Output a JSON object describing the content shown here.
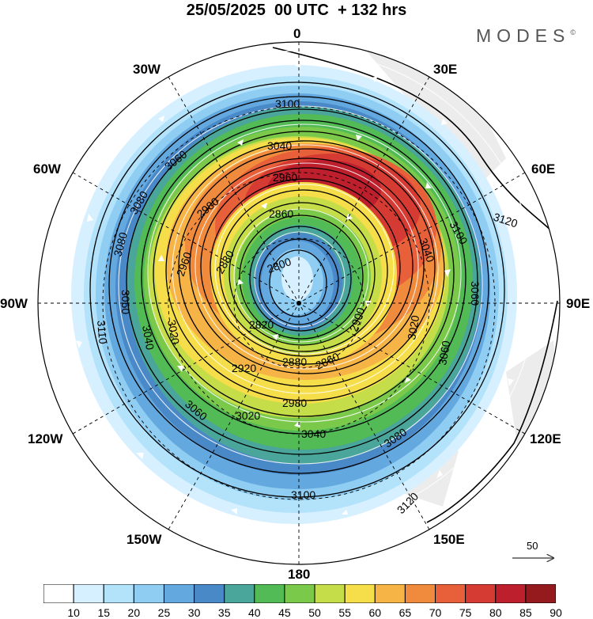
{
  "title": "25/05/2025  00 UTC  + 132 hrs",
  "logo": "MODES",
  "logo_mark": "©",
  "longitude_labels": {
    "lon_0": "0",
    "lon_30e": "30E",
    "lon_60e": "60E",
    "lon_90e": "90E",
    "lon_120e": "120E",
    "lon_150e": "150E",
    "lon_180": "180",
    "lon_150w": "150W",
    "lon_120w": "120W",
    "lon_90w": "90W",
    "lon_60w": "60W",
    "lon_30w": "30W"
  },
  "contour_labels": [
    "3100",
    "3040",
    "2960",
    "2860",
    "3060",
    "2980",
    "3080",
    "3080",
    "2880",
    "2800",
    "2960",
    "3060",
    "2820",
    "3040",
    "3110",
    "3020",
    "2920",
    "2880",
    "2980",
    "3060",
    "3020",
    "3040",
    "3080",
    "3100",
    "3120",
    "2900",
    "3020",
    "3040",
    "3100",
    "3060",
    "3120",
    "3060",
    "2860"
  ],
  "wind_reference": "50",
  "colorbar": {
    "ticks": [
      "10",
      "15",
      "20",
      "25",
      "30",
      "35",
      "40",
      "45",
      "50",
      "55",
      "60",
      "65",
      "70",
      "75",
      "80",
      "85",
      "90"
    ],
    "colors": [
      "#ffffff",
      "#d7f0ff",
      "#b3e2fb",
      "#8fcdf2",
      "#63a8df",
      "#4a89c8",
      "#4aa59a",
      "#52bb55",
      "#7ac94a",
      "#c4dd48",
      "#f6de4a",
      "#f6b447",
      "#f08a3d",
      "#e8603a",
      "#d63b33",
      "#bd1f2c",
      "#951a1e"
    ]
  }
}
